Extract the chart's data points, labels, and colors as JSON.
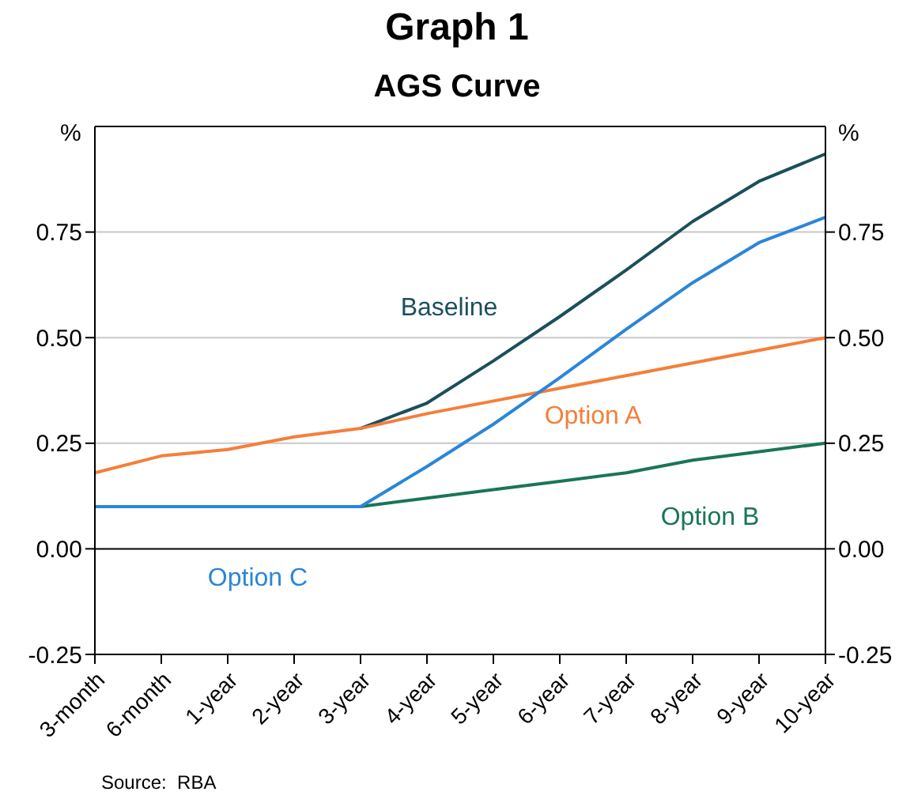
{
  "chart_data": {
    "type": "line",
    "title": "Graph 1",
    "subtitle": "AGS Curve",
    "ylabel": "%",
    "y2label": "%",
    "categories": [
      "3-month",
      "6-month",
      "1-year",
      "2-year",
      "3-year",
      "4-year",
      "5-year",
      "6-year",
      "7-year",
      "8-year",
      "9-year",
      "10-year"
    ],
    "series": [
      {
        "name": "Baseline",
        "color": "#1b4f5c",
        "values": [
          null,
          null,
          null,
          null,
          0.285,
          0.345,
          0.445,
          0.55,
          0.66,
          0.775,
          0.87,
          0.935
        ]
      },
      {
        "name": "Option A",
        "color": "#f47f3a",
        "values": [
          0.18,
          0.22,
          0.235,
          0.265,
          0.285,
          0.32,
          0.35,
          0.38,
          0.41,
          0.44,
          0.47,
          0.5
        ]
      },
      {
        "name": "Option B",
        "color": "#1a7558",
        "values": [
          null,
          null,
          null,
          null,
          0.1,
          0.12,
          0.14,
          0.16,
          0.18,
          0.21,
          0.23,
          0.25
        ]
      },
      {
        "name": "Option C",
        "color": "#2a86d8",
        "values": [
          0.1,
          0.1,
          0.1,
          0.1,
          0.1,
          0.195,
          0.295,
          0.405,
          0.52,
          0.63,
          0.725,
          0.785
        ]
      }
    ],
    "ylim": [
      -0.25,
      1
    ],
    "yticks": [
      -0.25,
      {
        "value": 0,
        "label": "0.00"
      },
      0.25,
      {
        "value": 0.5,
        "label": "0.50"
      },
      0.75
    ],
    "y2lim": [
      -0.25,
      1
    ],
    "y2ticks": [
      -0.25,
      {
        "value": 0,
        "label": "0.00"
      },
      0.25,
      {
        "value": 0.5,
        "label": "0.50"
      },
      0.75
    ],
    "grid": "y",
    "marker": "none",
    "line_style": "solid",
    "annotations": [
      "Source:  RBA"
    ]
  }
}
